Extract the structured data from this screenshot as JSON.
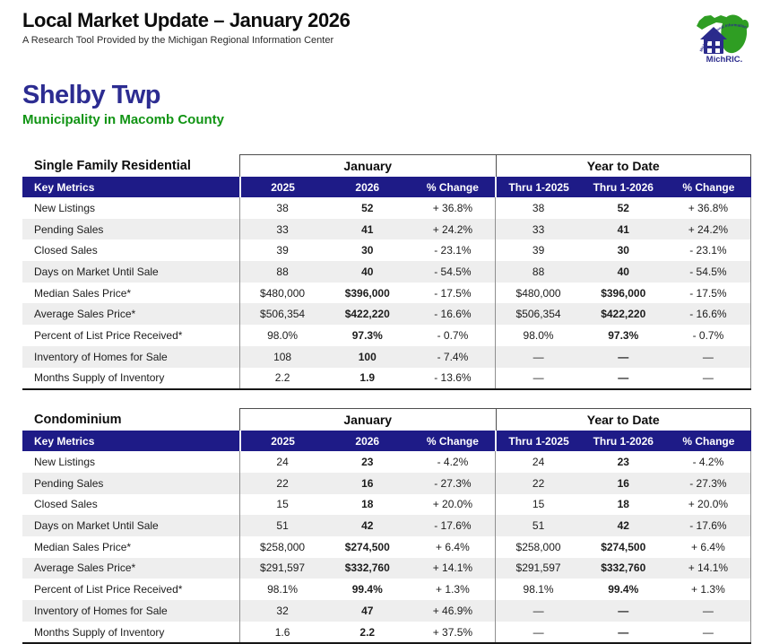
{
  "colors": {
    "navy_bar": "#1e1b87",
    "navy_title": "#2c2c91",
    "green": "#119414",
    "row_alt": "#eeeeee",
    "logo_green": "#2f9e23",
    "logo_blue": "#2b2b8c"
  },
  "header": {
    "title": "Local Market Update – January 2026",
    "subtitle": "A Research Tool Provided by the Michigan Regional Information Center",
    "logo": {
      "name": "MichRIC.",
      "arc_text": "Michigan Regional Information Center"
    }
  },
  "location": {
    "name": "Shelby Twp",
    "subtitle": "Municipality in Macomb County"
  },
  "tables": [
    {
      "title": "Single Family Residential",
      "key_metrics_label": "Key Metrics",
      "group_headers": [
        "January",
        "Year to Date"
      ],
      "columns": [
        "2025",
        "2026",
        "% Change",
        "Thru 1-2025",
        "Thru 1-2026",
        "% Change"
      ],
      "rows": [
        {
          "label": "New Listings",
          "values": [
            "38",
            "52",
            "+ 36.8%",
            "38",
            "52",
            "+ 36.8%"
          ]
        },
        {
          "label": "Pending Sales",
          "values": [
            "33",
            "41",
            "+ 24.2%",
            "33",
            "41",
            "+ 24.2%"
          ]
        },
        {
          "label": "Closed Sales",
          "values": [
            "39",
            "30",
            "- 23.1%",
            "39",
            "30",
            "- 23.1%"
          ]
        },
        {
          "label": "Days on Market Until Sale",
          "values": [
            "88",
            "40",
            "- 54.5%",
            "88",
            "40",
            "- 54.5%"
          ]
        },
        {
          "label": "Median Sales Price*",
          "values": [
            "$480,000",
            "$396,000",
            "- 17.5%",
            "$480,000",
            "$396,000",
            "- 17.5%"
          ]
        },
        {
          "label": "Average Sales Price*",
          "values": [
            "$506,354",
            "$422,220",
            "- 16.6%",
            "$506,354",
            "$422,220",
            "- 16.6%"
          ]
        },
        {
          "label": "Percent of List Price Received*",
          "values": [
            "98.0%",
            "97.3%",
            "- 0.7%",
            "98.0%",
            "97.3%",
            "- 0.7%"
          ]
        },
        {
          "label": "Inventory of Homes for Sale",
          "values": [
            "108",
            "100",
            "- 7.4%",
            "—",
            "—",
            "—"
          ]
        },
        {
          "label": "Months Supply of Inventory",
          "values": [
            "2.2",
            "1.9",
            "- 13.6%",
            "—",
            "—",
            "—"
          ]
        }
      ]
    },
    {
      "title": "Condominium",
      "key_metrics_label": "Key Metrics",
      "group_headers": [
        "January",
        "Year to Date"
      ],
      "columns": [
        "2025",
        "2026",
        "% Change",
        "Thru 1-2025",
        "Thru 1-2026",
        "% Change"
      ],
      "rows": [
        {
          "label": "New Listings",
          "values": [
            "24",
            "23",
            "- 4.2%",
            "24",
            "23",
            "- 4.2%"
          ]
        },
        {
          "label": "Pending Sales",
          "values": [
            "22",
            "16",
            "- 27.3%",
            "22",
            "16",
            "- 27.3%"
          ]
        },
        {
          "label": "Closed Sales",
          "values": [
            "15",
            "18",
            "+ 20.0%",
            "15",
            "18",
            "+ 20.0%"
          ]
        },
        {
          "label": "Days on Market Until Sale",
          "values": [
            "51",
            "42",
            "- 17.6%",
            "51",
            "42",
            "- 17.6%"
          ]
        },
        {
          "label": "Median Sales Price*",
          "values": [
            "$258,000",
            "$274,500",
            "+ 6.4%",
            "$258,000",
            "$274,500",
            "+ 6.4%"
          ]
        },
        {
          "label": "Average Sales Price*",
          "values": [
            "$291,597",
            "$332,760",
            "+ 14.1%",
            "$291,597",
            "$332,760",
            "+ 14.1%"
          ]
        },
        {
          "label": "Percent of List Price Received*",
          "values": [
            "98.1%",
            "99.4%",
            "+ 1.3%",
            "98.1%",
            "99.4%",
            "+ 1.3%"
          ]
        },
        {
          "label": "Inventory of Homes for Sale",
          "values": [
            "32",
            "47",
            "+ 46.9%",
            "—",
            "—",
            "—"
          ]
        },
        {
          "label": "Months Supply of Inventory",
          "values": [
            "1.6",
            "2.2",
            "+ 37.5%",
            "—",
            "—",
            "—"
          ]
        }
      ]
    }
  ]
}
